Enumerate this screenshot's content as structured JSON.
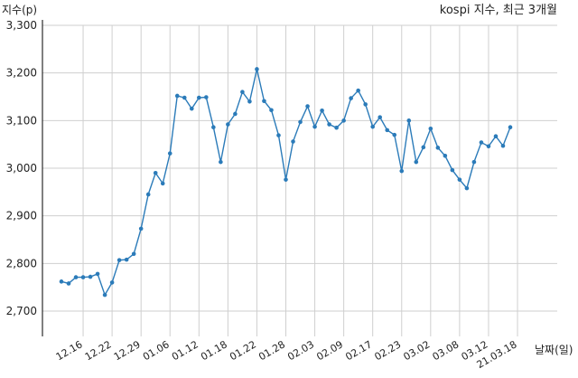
{
  "chart_data": {
    "type": "line",
    "title": "kospi 지수, 최근 3개월",
    "ylabel": "지수(p)",
    "xlabel": "날짜(일)",
    "ylim": [
      2650,
      3300
    ],
    "yticks": [
      2700,
      2800,
      2900,
      3000,
      3100,
      3200,
      3300
    ],
    "ytick_labels": [
      "2,700",
      "2,800",
      "2,900",
      "3,000",
      "3,100",
      "3,200",
      "3,300"
    ],
    "xtick_labels": [
      "12.16",
      "12.22",
      "12.29",
      "01.06",
      "01.12",
      "01.18",
      "01.22",
      "01.28",
      "02.03",
      "02.09",
      "02.17",
      "02.23",
      "03.02",
      "03.08",
      "03.12",
      "21.03.18"
    ],
    "xtick_index": [
      3,
      7,
      11,
      15,
      19,
      23,
      27,
      31,
      35,
      39,
      43,
      47,
      51,
      55,
      59,
      63
    ],
    "grid": true,
    "color": "#2b7bb9",
    "series": [
      {
        "values": [
          2762,
          2758,
          2771,
          2771,
          2772,
          2778,
          2734,
          2760,
          2807,
          2808,
          2820,
          2873,
          2945,
          2990,
          2968,
          3031,
          3152,
          3148,
          3125,
          3148,
          3149,
          3086,
          3013,
          3092,
          3114,
          3160,
          3140,
          3208,
          3141,
          3122,
          3069,
          2976,
          3056,
          3097,
          3130,
          3087,
          3121,
          3092,
          3085,
          3100,
          3147,
          3163,
          3134,
          3087,
          3107,
          3080,
          3070,
          2994,
          3100,
          3013,
          3044,
          3083,
          3043,
          3026,
          2996,
          2976,
          2958,
          3013,
          3054,
          3046,
          3067,
          3047,
          3086
        ]
      }
    ]
  }
}
